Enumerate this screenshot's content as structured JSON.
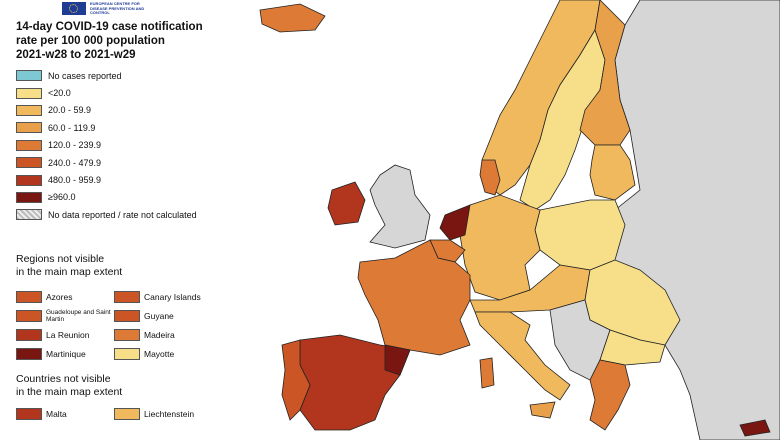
{
  "header": {
    "org_text": "EUROPEAN CENTRE FOR DISEASE PREVENTION AND CONTROL",
    "title_lines": [
      "14-day COVID-19 case notification",
      "rate per 100 000 population",
      "2021-w28 to 2021-w29"
    ]
  },
  "legend": {
    "items": [
      {
        "label": "No cases reported",
        "color": "#7ec8d4"
      },
      {
        "label": "<20.0",
        "color": "#f7df8a"
      },
      {
        "label": "20.0 - 59.9",
        "color": "#f0b95d"
      },
      {
        "label": "60.0 - 119.9",
        "color": "#e8a04a"
      },
      {
        "label": "120.0 - 239.9",
        "color": "#dd7a36"
      },
      {
        "label": "240.0 - 479.9",
        "color": "#cc5526"
      },
      {
        "label": "480.0 - 959.9",
        "color": "#b2361e"
      },
      {
        "label": "≥960.0",
        "color": "#7a1612"
      },
      {
        "label": "No data reported / rate not calculated",
        "color": "hatch"
      }
    ]
  },
  "regions": {
    "heading_lines": [
      "Regions not visible",
      "in the main map extent"
    ],
    "items": [
      {
        "label": "Azores",
        "color": "#cc5526"
      },
      {
        "label": "Canary Islands",
        "color": "#cc5526"
      },
      {
        "label": "Guadeloupe and Saint Martin",
        "color": "#cc5526"
      },
      {
        "label": "Guyane",
        "color": "#cc5526"
      },
      {
        "label": "La Reunion",
        "color": "#b2361e"
      },
      {
        "label": "Madeira",
        "color": "#dd7a36"
      },
      {
        "label": "Martinique",
        "color": "#7a1612"
      },
      {
        "label": "Mayotte",
        "color": "#f7df8a"
      }
    ]
  },
  "countries": {
    "heading_lines": [
      "Countries not visible",
      "in the main map extent"
    ],
    "items": [
      {
        "label": "Malta",
        "color": "#b2361e"
      },
      {
        "label": "Liechtenstein",
        "color": "#f0b95d"
      }
    ]
  },
  "map": {
    "sea_color": "#ffffff",
    "no_data_color": "#d6d6d6",
    "coast_color": "#222222"
  }
}
